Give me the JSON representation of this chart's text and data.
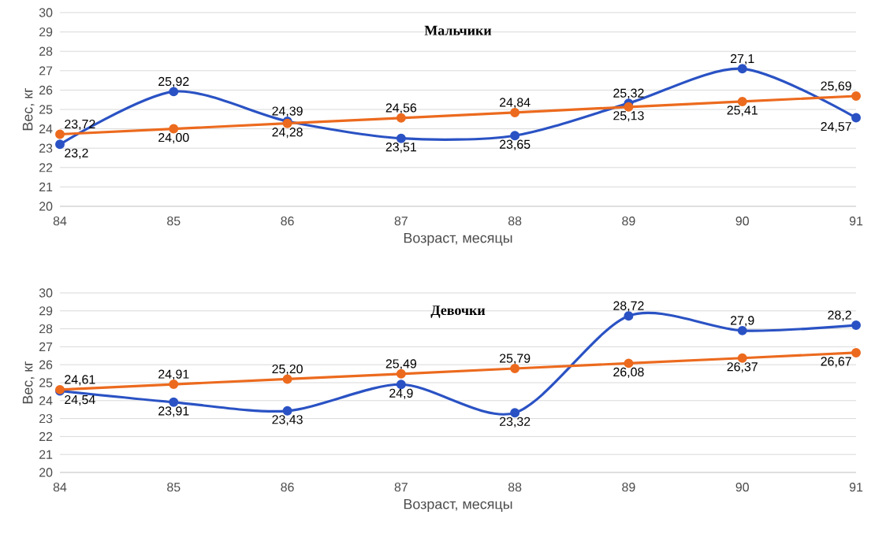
{
  "chart_data": [
    {
      "type": "line",
      "title": "Мальчики",
      "xlabel": "Возраст, месяцы",
      "ylabel": "Вес, кг",
      "x": [
        84,
        85,
        86,
        87,
        88,
        89,
        90,
        91
      ],
      "xlim": [
        84,
        91
      ],
      "xticks": [
        84,
        85,
        86,
        87,
        88,
        89,
        90,
        91
      ],
      "ylim": [
        20,
        30
      ],
      "yticks": [
        20,
        21,
        22,
        23,
        24,
        25,
        26,
        27,
        28,
        29,
        30
      ],
      "grid": "y",
      "marker": "circle",
      "series": [
        {
          "color": "#2a52c4",
          "values": [
            23.2,
            25.92,
            24.39,
            23.51,
            23.65,
            25.32,
            27.1,
            24.57
          ],
          "value_labels": [
            "23,2",
            "25,92",
            "24,39",
            "23,51",
            "23,65",
            "25,32",
            "27,1",
            "24,57"
          ]
        },
        {
          "color": "#ec6a1e",
          "values": [
            23.72,
            24.0,
            24.28,
            24.56,
            24.84,
            25.13,
            25.41,
            25.69
          ],
          "value_labels": [
            "23,72",
            "24,00",
            "24,28",
            "24,56",
            "24,84",
            "25,13",
            "25,41",
            "25,69"
          ]
        }
      ]
    },
    {
      "type": "line",
      "title": "Девочки",
      "xlabel": "Возраст, месяцы",
      "ylabel": "Вес, кг",
      "x": [
        84,
        85,
        86,
        87,
        88,
        89,
        90,
        91
      ],
      "xlim": [
        84,
        91
      ],
      "xticks": [
        84,
        85,
        86,
        87,
        88,
        89,
        90,
        91
      ],
      "ylim": [
        20,
        30
      ],
      "yticks": [
        20,
        21,
        22,
        23,
        24,
        25,
        26,
        27,
        28,
        29,
        30
      ],
      "grid": "y",
      "marker": "circle",
      "series": [
        {
          "color": "#2a52c4",
          "values": [
            24.54,
            23.91,
            23.43,
            24.9,
            23.32,
            28.72,
            27.9,
            28.2
          ],
          "value_labels": [
            "24,54",
            "23,91",
            "23,43",
            "24,9",
            "23,32",
            "28,72",
            "27,9",
            "28,2"
          ]
        },
        {
          "color": "#ec6a1e",
          "values": [
            24.61,
            24.91,
            25.2,
            25.49,
            25.79,
            26.08,
            26.37,
            26.67
          ],
          "value_labels": [
            "24,61",
            "24,91",
            "25,20",
            "25,49",
            "25,79",
            "26,08",
            "26,37",
            "26,67"
          ]
        }
      ]
    }
  ]
}
